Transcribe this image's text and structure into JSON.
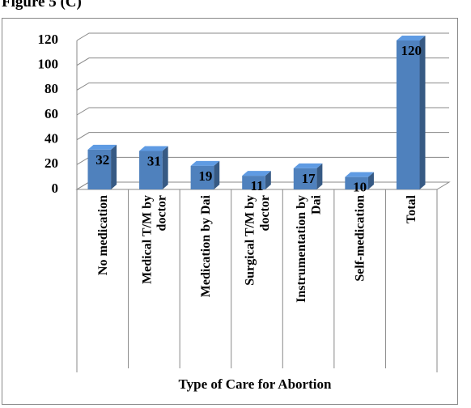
{
  "chart_data": {
    "type": "bar3d",
    "title": "Figure 5 (C)",
    "x_label": "Type of Care for Abortion",
    "categories": [
      "No medication",
      "Medical T/M by\ndoctor",
      "Medication  by Dai",
      "Surgical T/M by\ndoctor",
      "Instrumentation by\nDai",
      "Self-medication",
      "Total"
    ],
    "values": [
      32,
      31,
      19,
      11,
      17,
      10,
      120
    ],
    "color": "#4f81bd",
    "ylim": [
      0,
      120
    ],
    "yticks": [
      0,
      20,
      40,
      60,
      80,
      100,
      120
    ],
    "grid": true
  }
}
